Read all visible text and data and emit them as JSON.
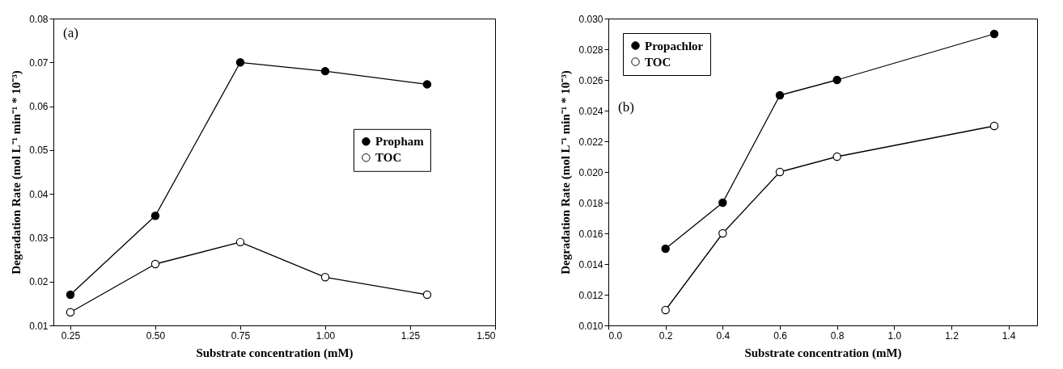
{
  "chart_data": [
    {
      "type": "line",
      "xlabel": "Substrate concentration (mM)",
      "ylabel": "Degradation Rate (mol L⁻¹ min⁻¹ * 10⁻³)",
      "annotations": [
        "(a)"
      ],
      "x": [
        0.25,
        0.5,
        0.75,
        1.0,
        1.3
      ],
      "series": [
        {
          "name": "Propham",
          "color": "#000000",
          "values": [
            0.017,
            0.035,
            0.07,
            0.068,
            0.065
          ]
        },
        {
          "name": "TOC",
          "color": "#000000",
          "values": [
            0.013,
            0.024,
            0.029,
            0.021,
            0.017
          ]
        }
      ],
      "xlim": [
        0.2,
        1.5
      ],
      "xticks": [
        0.25,
        {
          "value": 0.5,
          "label": "0.50"
        },
        0.75,
        {
          "value": 1.0,
          "label": "1.00"
        },
        1.25,
        {
          "value": 1.5,
          "label": "1.50"
        }
      ],
      "ylim": [
        0.01,
        0.08
      ],
      "yticks": [
        0.01,
        0.02,
        0.03,
        0.04,
        0.05,
        0.06,
        0.07,
        0.08
      ],
      "grid": false,
      "legend": "right",
      "marker": "circle",
      "line_style": "solid"
    },
    {
      "type": "line",
      "xlabel": "Substrate concentration (mM)",
      "ylabel": "Degradation Rate (mol L⁻¹ min⁻¹ * 10⁻³)",
      "annotations": [
        "(b)"
      ],
      "x": [
        0.2,
        0.4,
        0.6,
        0.8,
        1.35
      ],
      "series": [
        {
          "name": "Propachlor",
          "color": "#000000",
          "values": [
            0.015,
            0.018,
            0.025,
            0.026,
            0.029
          ]
        },
        {
          "name": "TOC",
          "color": "#000000",
          "values": [
            0.011,
            0.016,
            0.02,
            0.021,
            0.023
          ]
        }
      ],
      "xlim": [
        0,
        1.5
      ],
      "xticks": [
        {
          "value": 0,
          "label": "0.0"
        },
        0.2,
        0.4,
        0.6,
        0.8,
        {
          "value": 1.0,
          "label": "1.0"
        },
        1.2,
        1.4
      ],
      "ylim": [
        0.01,
        0.03
      ],
      "yticks": [
        {
          "value": 0.01,
          "label": "0.010"
        },
        0.012,
        0.014,
        0.016,
        0.018,
        {
          "value": 0.02,
          "label": "0.020"
        },
        0.022,
        0.024,
        0.026,
        0.028,
        {
          "value": 0.03,
          "label": "0.030"
        }
      ],
      "grid": false,
      "legend": "top left",
      "marker": "circle",
      "line_style": "solid"
    }
  ]
}
